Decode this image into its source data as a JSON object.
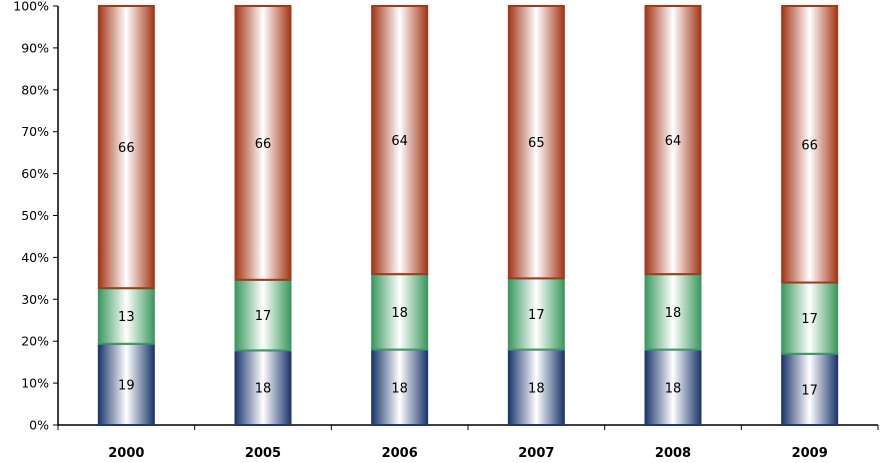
{
  "chart_data": {
    "type": "bar",
    "stacked": true,
    "percent_stacked": true,
    "categories": [
      "2000",
      "2005",
      "2006",
      "2007",
      "2008",
      "2009"
    ],
    "series": [
      {
        "values": [
          19,
          18,
          18,
          18,
          18,
          17
        ],
        "color": "#1F3A6E"
      },
      {
        "values": [
          13,
          17,
          18,
          17,
          18,
          17
        ],
        "color": "#3E9A60"
      },
      {
        "values": [
          66,
          66,
          64,
          65,
          64,
          66
        ],
        "color": "#A4381A"
      }
    ],
    "y_ticks": [
      "0%",
      "10%",
      "20%",
      "30%",
      "40%",
      "50%",
      "60%",
      "70%",
      "80%",
      "90%",
      "100%"
    ],
    "ylim": [
      0,
      100
    ],
    "grid": false,
    "legend": "none",
    "data_labels": true
  }
}
